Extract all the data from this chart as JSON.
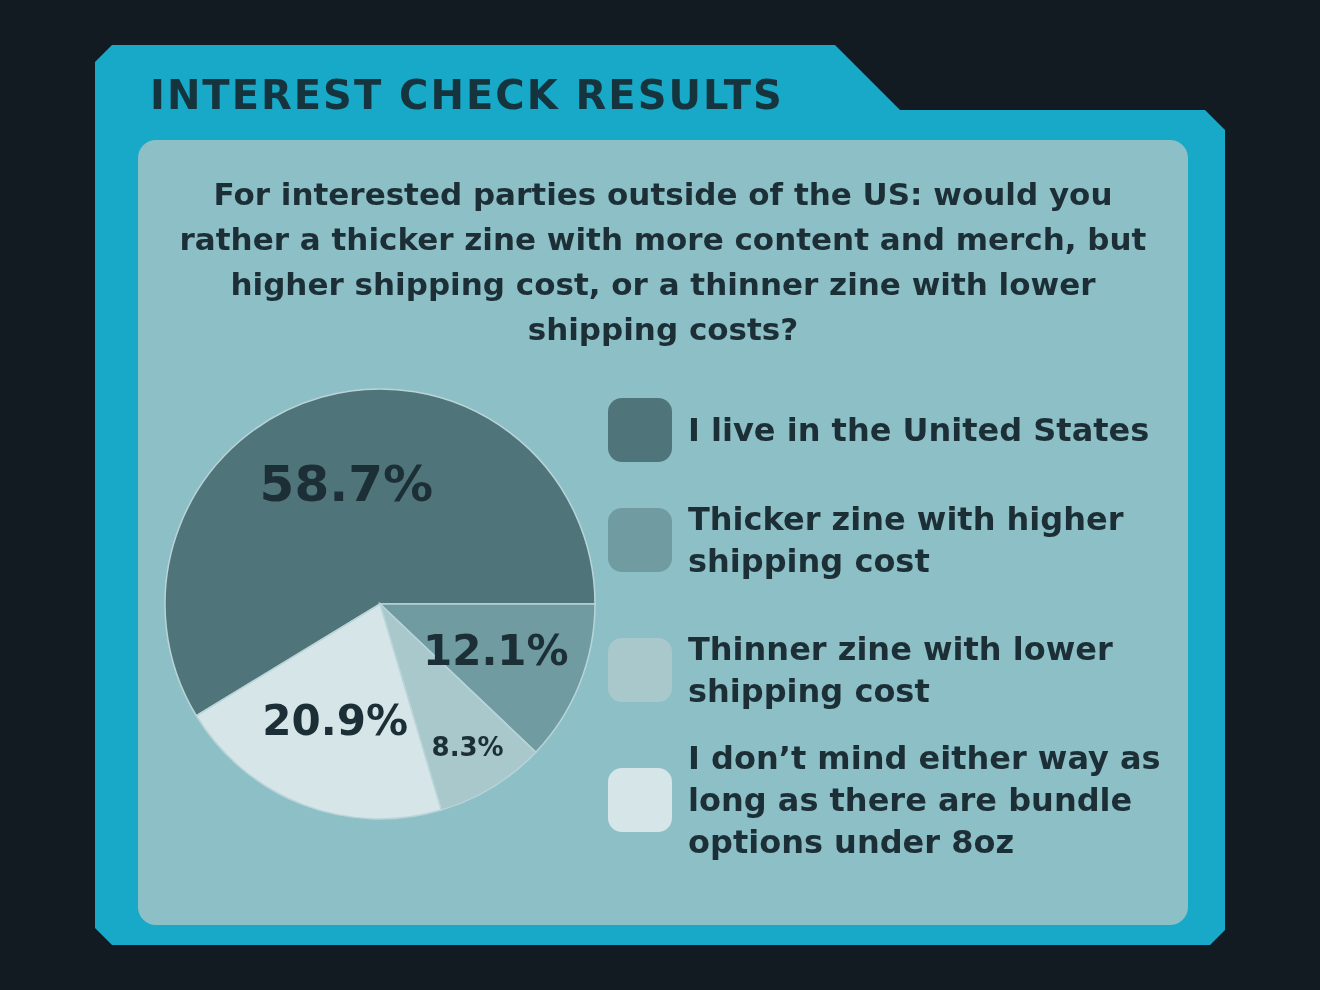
{
  "chart_data": {
    "type": "pie",
    "title": "INTEREST CHECK RESULTS",
    "subtitle": "For interested parties outside of the US: would you rather a thicker zine with more content and merch, but higher shipping cost, or a thinner zine with lower shipping costs?",
    "categories": [
      "I live in the United States",
      "Thicker zine with higher shipping cost",
      "Thinner zine with lower shipping cost",
      "I don’t mind either way as long as there are bundle options under 8oz"
    ],
    "values": [
      58.7,
      12.1,
      8.3,
      20.9
    ],
    "colors": [
      "#4f7479",
      "#6f9ba1",
      "#a8c8cc",
      "#d6e5e7"
    ],
    "value_labels": [
      "58.7%",
      "12.1%",
      "8.3%",
      "20.9%"
    ],
    "legend": "right"
  }
}
